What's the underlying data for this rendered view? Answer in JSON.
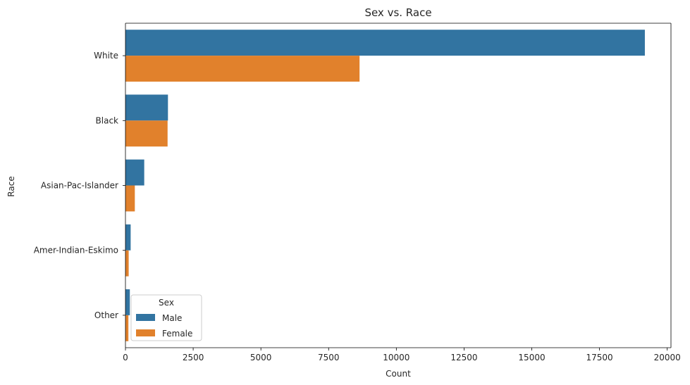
{
  "chart_data": {
    "type": "bar",
    "orientation": "horizontal",
    "title": "Sex vs. Race",
    "xlabel": "Count",
    "ylabel": "Race",
    "categories": [
      "White",
      "Black",
      "Asian-Pac-Islander",
      "Amer-Indian-Eskimo",
      "Other"
    ],
    "series": [
      {
        "name": "Male",
        "color": "#3274a1",
        "values": [
          19174,
          1569,
          693,
          192,
          162
        ]
      },
      {
        "name": "Female",
        "color": "#e1812c",
        "values": [
          8642,
          1555,
          346,
          119,
          109
        ]
      }
    ],
    "xlim": [
      0,
      20138
    ],
    "xticks": [
      0,
      2500,
      5000,
      7500,
      10000,
      12500,
      15000,
      17500,
      20000
    ],
    "grid": false,
    "legend": {
      "title": "Sex",
      "placement": "lower-left"
    }
  }
}
